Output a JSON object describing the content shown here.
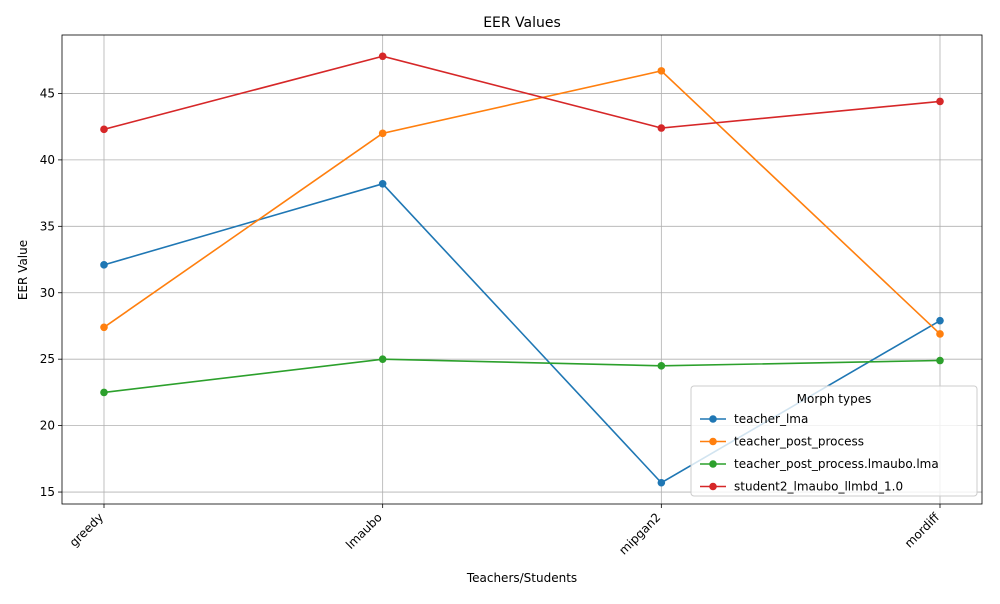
{
  "chart_data": {
    "type": "line",
    "title": "EER Values",
    "xlabel": "Teachers/Students",
    "ylabel": "EER Value",
    "categories": [
      "greedy",
      "lmaubo",
      "mipgan2",
      "mordiff"
    ],
    "ylim": [
      14.1,
      49.4
    ],
    "yticks": [
      15,
      20,
      25,
      30,
      35,
      40,
      45
    ],
    "grid": true,
    "legend": {
      "title": "Morph types",
      "placement": "lower-right"
    },
    "series": [
      {
        "name": "teacher_lma",
        "color": "#1f77b4",
        "values": [
          32.1,
          38.2,
          15.7,
          27.9
        ]
      },
      {
        "name": "teacher_post_process",
        "color": "#ff7f0e",
        "values": [
          27.4,
          42.0,
          46.7,
          26.9
        ]
      },
      {
        "name": "teacher_post_process.lmaubo.lma",
        "color": "#2ca02c",
        "values": [
          22.5,
          25.0,
          24.5,
          24.9
        ]
      },
      {
        "name": "student2_lmaubo_llmbd_1.0",
        "color": "#d62728",
        "values": [
          42.3,
          47.8,
          42.4,
          44.4
        ]
      }
    ]
  }
}
